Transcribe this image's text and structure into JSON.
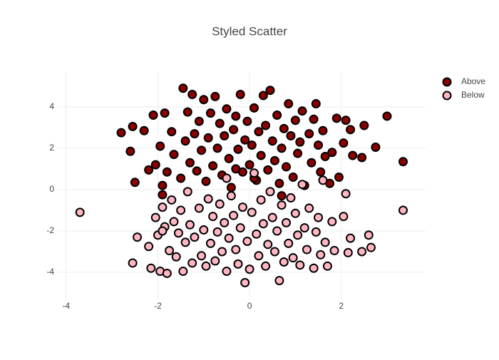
{
  "chart_data": {
    "type": "scatter",
    "title": "Styled Scatter",
    "xlim": [
      -4.2,
      3.84
    ],
    "ylim": [
      -5.31,
      5.72
    ],
    "xticks": [
      -4,
      -2,
      0,
      2
    ],
    "yticks": [
      -4,
      -2,
      0,
      2,
      4
    ],
    "grid": true,
    "legend": "top-right",
    "marker_line_color": "#000000",
    "series": [
      {
        "name": "Above",
        "color": "#8b0000",
        "x": [
          -2.8,
          -2.6,
          -2.55,
          -2.5,
          -2.3,
          -2.2,
          -2.1,
          -2.05,
          -1.95,
          -1.9,
          -1.85,
          -1.8,
          -1.7,
          -1.65,
          -1.5,
          -1.45,
          -1.4,
          -1.35,
          -1.3,
          -1.25,
          -1.2,
          -1.15,
          -1.1,
          -1.05,
          -1.0,
          -0.95,
          -0.9,
          -0.85,
          -0.8,
          -0.75,
          -0.7,
          -0.65,
          -0.6,
          -0.55,
          -0.5,
          -0.45,
          -0.4,
          -0.35,
          -0.3,
          -0.25,
          -0.2,
          -0.15,
          -0.1,
          -0.05,
          0.0,
          0.05,
          0.1,
          0.15,
          0.2,
          0.25,
          0.3,
          0.35,
          0.4,
          0.45,
          0.5,
          0.55,
          0.6,
          0.65,
          0.7,
          0.75,
          0.8,
          0.85,
          0.9,
          0.95,
          1.0,
          1.05,
          1.1,
          1.15,
          1.2,
          1.3,
          1.35,
          1.4,
          1.45,
          1.5,
          1.55,
          1.6,
          1.65,
          1.75,
          1.8,
          1.9,
          1.95,
          2.05,
          2.1,
          2.2,
          2.25,
          2.45,
          2.5,
          2.75,
          3.0,
          3.35,
          0.1,
          -0.3,
          0.7,
          -1.9
        ],
        "values": [
          2.75,
          1.85,
          3.05,
          0.35,
          2.85,
          0.95,
          3.6,
          1.2,
          2.1,
          0.2,
          3.7,
          0.85,
          2.8,
          1.7,
          0.55,
          4.9,
          2.35,
          3.75,
          1.3,
          4.6,
          2.7,
          0.9,
          3.3,
          1.9,
          4.35,
          0.4,
          2.5,
          3.7,
          1.15,
          4.5,
          2.0,
          3.2,
          0.7,
          2.6,
          3.9,
          1.5,
          0.1,
          2.9,
          3.55,
          1.95,
          4.6,
          0.85,
          2.4,
          3.3,
          1.2,
          2.15,
          3.95,
          0.45,
          2.8,
          1.65,
          4.55,
          3.1,
          0.95,
          4.8,
          2.35,
          1.4,
          3.6,
          0.3,
          2.0,
          2.95,
          1.1,
          4.15,
          2.6,
          0.6,
          3.35,
          1.75,
          2.3,
          3.8,
          0.2,
          2.7,
          1.3,
          3.4,
          4.15,
          2.15,
          0.85,
          2.85,
          1.6,
          0.3,
          1.8,
          3.45,
          0.6,
          2.25,
          3.35,
          2.9,
          1.65,
          1.55,
          3.1,
          2.05,
          3.55,
          1.35,
          0.55,
          1.0,
          -0.3,
          -0.25
        ]
      },
      {
        "name": "Below",
        "color": "#ffb6c1",
        "x": [
          -3.7,
          -2.55,
          -2.45,
          -2.2,
          -2.15,
          -2.05,
          -2.0,
          -1.95,
          -1.9,
          -1.85,
          -1.8,
          -1.75,
          -1.7,
          -1.65,
          -1.6,
          -1.55,
          -1.5,
          -1.45,
          -1.4,
          -1.35,
          -1.3,
          -1.25,
          -1.2,
          -1.1,
          -1.05,
          -1.0,
          -0.95,
          -0.9,
          -0.85,
          -0.8,
          -0.75,
          -0.7,
          -0.65,
          -0.6,
          -0.55,
          -0.5,
          -0.45,
          -0.4,
          -0.35,
          -0.3,
          -0.25,
          -0.2,
          -0.15,
          -0.1,
          -0.05,
          0.0,
          0.05,
          0.1,
          0.15,
          0.2,
          0.25,
          0.3,
          0.35,
          0.4,
          0.45,
          0.5,
          0.55,
          0.6,
          0.65,
          0.7,
          0.75,
          0.8,
          0.85,
          0.9,
          0.95,
          1.0,
          1.05,
          1.1,
          1.15,
          1.2,
          1.25,
          1.3,
          1.4,
          1.45,
          1.5,
          1.55,
          1.6,
          1.65,
          1.7,
          1.8,
          1.85,
          2.05,
          2.1,
          2.15,
          2.2,
          2.45,
          2.6,
          2.65,
          3.35,
          -0.5,
          -1.9
        ],
        "values": [
          -1.1,
          -3.55,
          -2.3,
          -2.75,
          -3.8,
          -1.35,
          -2.2,
          -3.95,
          -0.85,
          -1.8,
          -4.05,
          -2.95,
          -0.5,
          -1.55,
          -3.25,
          -2.1,
          -1.0,
          -3.95,
          -2.55,
          -0.1,
          -1.7,
          -3.55,
          -2.3,
          -0.9,
          -3.2,
          -1.95,
          -3.7,
          -0.45,
          -2.6,
          -1.3,
          -3.45,
          -2.05,
          -0.7,
          -3.0,
          -1.6,
          -3.95,
          -2.35,
          -0.3,
          -1.25,
          -2.9,
          -3.6,
          -1.85,
          -0.85,
          -4.5,
          -2.5,
          -3.85,
          -1.1,
          0.8,
          -2.15,
          -3.2,
          -0.5,
          -1.65,
          -3.7,
          -2.65,
          -0.1,
          -1.35,
          -3.0,
          -2.0,
          -4.4,
          -0.75,
          -3.5,
          -1.6,
          -2.6,
          -0.4,
          -3.3,
          -1.15,
          -2.2,
          -3.65,
          0.25,
          -1.85,
          -2.9,
          -0.9,
          -3.8,
          -2.05,
          -1.35,
          -3.15,
          0.45,
          -2.55,
          -3.7,
          -1.55,
          -2.95,
          -1.3,
          -0.2,
          -3.05,
          -2.35,
          -3.0,
          -2.2,
          -2.8,
          -1.0,
          0.55,
          -2.0
        ]
      }
    ]
  }
}
